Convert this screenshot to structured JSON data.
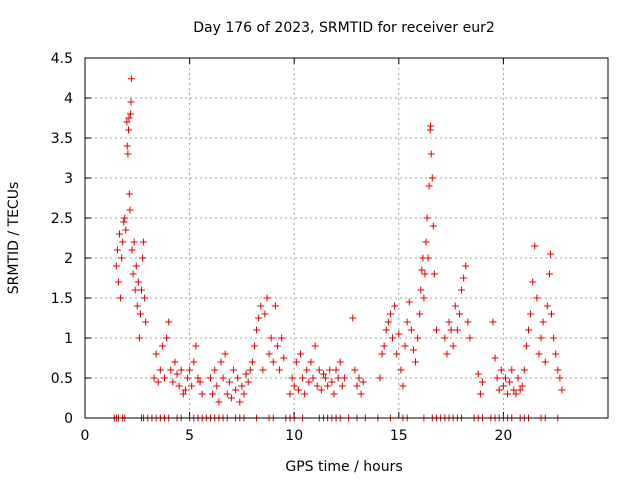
{
  "chart_data": {
    "type": "scatter",
    "title": "Day 176 of 2023, SRMTID for receiver eur2",
    "xlabel": "GPS time / hours",
    "ylabel": "SRMTID / TECUs",
    "xlim": [
      0,
      25
    ],
    "ylim": [
      0,
      4.5
    ],
    "xticks": [
      0,
      5,
      10,
      15,
      20
    ],
    "yticks": [
      0,
      0.5,
      1,
      1.5,
      2,
      2.5,
      3,
      3.5,
      4,
      4.5
    ],
    "xtick_labels": [
      "0",
      "5",
      "10",
      "15",
      "20"
    ],
    "ytick_labels": [
      "0",
      "0.5",
      "1",
      "1.5",
      "2",
      "2.5",
      "3",
      "3.5",
      "4",
      "4.5"
    ],
    "grid": true,
    "marker": "plus",
    "color": "#e00000",
    "series": [
      {
        "name": "eur2",
        "points": [
          [
            1.5,
            1.9
          ],
          [
            1.55,
            2.1
          ],
          [
            1.6,
            1.7
          ],
          [
            1.65,
            2.3
          ],
          [
            1.7,
            1.5
          ],
          [
            1.75,
            2.0
          ],
          [
            1.8,
            2.2
          ],
          [
            1.85,
            2.45
          ],
          [
            1.9,
            2.5
          ],
          [
            1.95,
            2.35
          ],
          [
            2.0,
            3.7
          ],
          [
            2.02,
            3.4
          ],
          [
            2.05,
            3.3
          ],
          [
            2.08,
            3.6
          ],
          [
            2.1,
            3.75
          ],
          [
            2.12,
            2.8
          ],
          [
            2.15,
            2.6
          ],
          [
            2.18,
            3.8
          ],
          [
            2.2,
            3.95
          ],
          [
            2.22,
            4.24
          ],
          [
            2.25,
            2.1
          ],
          [
            2.3,
            1.8
          ],
          [
            2.35,
            2.2
          ],
          [
            2.4,
            1.6
          ],
          [
            2.45,
            1.9
          ],
          [
            2.5,
            1.4
          ],
          [
            2.55,
            1.7
          ],
          [
            2.6,
            1.0
          ],
          [
            2.65,
            1.3
          ],
          [
            2.7,
            1.6
          ],
          [
            2.75,
            2.0
          ],
          [
            2.8,
            2.2
          ],
          [
            2.85,
            1.5
          ],
          [
            2.9,
            1.2
          ],
          [
            3.3,
            0.5
          ],
          [
            3.4,
            0.8
          ],
          [
            3.5,
            0.45
          ],
          [
            3.6,
            0.6
          ],
          [
            3.7,
            0.9
          ],
          [
            3.8,
            0.5
          ],
          [
            3.9,
            1.0
          ],
          [
            4.0,
            1.2
          ],
          [
            4.1,
            0.6
          ],
          [
            4.2,
            0.45
          ],
          [
            4.3,
            0.7
          ],
          [
            4.4,
            0.55
          ],
          [
            4.5,
            0.4
          ],
          [
            4.6,
            0.6
          ],
          [
            4.7,
            0.3
          ],
          [
            4.8,
            0.35
          ],
          [
            4.9,
            0.5
          ],
          [
            5.0,
            0.6
          ],
          [
            5.1,
            0.4
          ],
          [
            5.2,
            0.7
          ],
          [
            5.3,
            0.9
          ],
          [
            5.4,
            0.5
          ],
          [
            5.5,
            0.45
          ],
          [
            5.6,
            0.3
          ],
          [
            6.0,
            0.5
          ],
          [
            6.1,
            0.3
          ],
          [
            6.2,
            0.6
          ],
          [
            6.3,
            0.4
          ],
          [
            6.4,
            0.2
          ],
          [
            6.5,
            0.7
          ],
          [
            6.6,
            0.5
          ],
          [
            6.7,
            0.8
          ],
          [
            6.8,
            0.3
          ],
          [
            6.9,
            0.45
          ],
          [
            7.0,
            0.25
          ],
          [
            7.1,
            0.6
          ],
          [
            7.2,
            0.35
          ],
          [
            7.3,
            0.5
          ],
          [
            7.4,
            0.2
          ],
          [
            7.5,
            0.4
          ],
          [
            7.6,
            0.3
          ],
          [
            7.7,
            0.55
          ],
          [
            7.8,
            0.45
          ],
          [
            7.9,
            0.6
          ],
          [
            8.0,
            0.7
          ],
          [
            8.1,
            0.9
          ],
          [
            8.2,
            1.1
          ],
          [
            8.3,
            1.25
          ],
          [
            8.4,
            1.4
          ],
          [
            8.5,
            0.6
          ],
          [
            8.6,
            1.3
          ],
          [
            8.7,
            1.5
          ],
          [
            8.8,
            0.8
          ],
          [
            8.9,
            1.0
          ],
          [
            9.0,
            0.7
          ],
          [
            9.1,
            1.4
          ],
          [
            9.2,
            0.9
          ],
          [
            9.3,
            0.6
          ],
          [
            9.4,
            1.0
          ],
          [
            9.5,
            0.75
          ],
          [
            9.8,
            0.3
          ],
          [
            9.9,
            0.5
          ],
          [
            10.0,
            0.4
          ],
          [
            10.1,
            0.7
          ],
          [
            10.2,
            0.35
          ],
          [
            10.3,
            0.8
          ],
          [
            10.4,
            0.5
          ],
          [
            10.5,
            0.3
          ],
          [
            10.6,
            0.6
          ],
          [
            10.7,
            0.45
          ],
          [
            10.8,
            0.7
          ],
          [
            10.9,
            0.5
          ],
          [
            11.0,
            0.9
          ],
          [
            11.1,
            0.4
          ],
          [
            11.2,
            0.6
          ],
          [
            11.3,
            0.35
          ],
          [
            11.4,
            0.55
          ],
          [
            11.5,
            0.5
          ],
          [
            11.6,
            0.4
          ],
          [
            11.7,
            0.6
          ],
          [
            11.8,
            0.45
          ],
          [
            11.9,
            0.3
          ],
          [
            12.0,
            0.6
          ],
          [
            12.1,
            0.5
          ],
          [
            12.2,
            0.7
          ],
          [
            12.3,
            0.4
          ],
          [
            12.4,
            0.5
          ],
          [
            12.8,
            1.25
          ],
          [
            12.9,
            0.6
          ],
          [
            13.0,
            0.4
          ],
          [
            13.1,
            0.5
          ],
          [
            13.2,
            0.3
          ],
          [
            13.3,
            0.45
          ],
          [
            14.1,
            0.5
          ],
          [
            14.2,
            0.8
          ],
          [
            14.3,
            0.9
          ],
          [
            14.4,
            1.1
          ],
          [
            14.5,
            1.2
          ],
          [
            14.6,
            1.3
          ],
          [
            14.7,
            1.0
          ],
          [
            14.8,
            1.4
          ],
          [
            14.9,
            0.8
          ],
          [
            15.0,
            1.05
          ],
          [
            15.1,
            0.6
          ],
          [
            15.2,
            0.4
          ],
          [
            15.3,
            0.9
          ],
          [
            15.4,
            1.2
          ],
          [
            15.5,
            1.45
          ],
          [
            15.6,
            1.1
          ],
          [
            15.7,
            0.85
          ],
          [
            15.8,
            0.7
          ],
          [
            15.9,
            1.0
          ],
          [
            16.0,
            1.3
          ],
          [
            16.05,
            1.6
          ],
          [
            16.1,
            1.85
          ],
          [
            16.15,
            2.0
          ],
          [
            16.2,
            1.5
          ],
          [
            16.25,
            1.8
          ],
          [
            16.3,
            2.2
          ],
          [
            16.35,
            2.5
          ],
          [
            16.4,
            2.0
          ],
          [
            16.45,
            2.9
          ],
          [
            16.5,
            3.6
          ],
          [
            16.52,
            3.65
          ],
          [
            16.55,
            3.3
          ],
          [
            16.6,
            3.0
          ],
          [
            16.65,
            2.4
          ],
          [
            16.7,
            1.8
          ],
          [
            16.8,
            1.1
          ],
          [
            17.2,
            1.0
          ],
          [
            17.3,
            0.8
          ],
          [
            17.4,
            1.2
          ],
          [
            17.5,
            1.1
          ],
          [
            17.6,
            0.9
          ],
          [
            17.7,
            1.4
          ],
          [
            17.8,
            1.1
          ],
          [
            17.9,
            1.3
          ],
          [
            18.0,
            1.6
          ],
          [
            18.1,
            1.75
          ],
          [
            18.2,
            1.9
          ],
          [
            18.3,
            1.2
          ],
          [
            18.4,
            1.0
          ],
          [
            18.8,
            0.55
          ],
          [
            18.9,
            0.3
          ],
          [
            19.0,
            0.45
          ],
          [
            19.5,
            1.2
          ],
          [
            19.6,
            0.75
          ],
          [
            19.7,
            0.5
          ],
          [
            19.8,
            0.35
          ],
          [
            19.9,
            0.6
          ],
          [
            20.0,
            0.4
          ],
          [
            20.1,
            0.5
          ],
          [
            20.2,
            0.3
          ],
          [
            20.3,
            0.45
          ],
          [
            20.4,
            0.6
          ],
          [
            20.5,
            0.35
          ],
          [
            20.6,
            0.3
          ],
          [
            20.7,
            0.5
          ],
          [
            20.8,
            0.35
          ],
          [
            20.9,
            0.4
          ],
          [
            21.0,
            0.6
          ],
          [
            21.1,
            0.9
          ],
          [
            21.2,
            1.1
          ],
          [
            21.3,
            1.3
          ],
          [
            21.4,
            1.7
          ],
          [
            21.5,
            2.15
          ],
          [
            21.6,
            1.5
          ],
          [
            21.7,
            0.8
          ],
          [
            21.8,
            1.0
          ],
          [
            21.9,
            1.2
          ],
          [
            22.0,
            0.7
          ],
          [
            22.1,
            1.4
          ],
          [
            22.2,
            1.8
          ],
          [
            22.25,
            2.05
          ],
          [
            22.3,
            1.3
          ],
          [
            22.4,
            1.0
          ],
          [
            22.5,
            0.8
          ],
          [
            22.6,
            0.6
          ],
          [
            22.7,
            0.5
          ],
          [
            22.8,
            0.35
          ]
        ],
        "zero_points_x": [
          1.4,
          1.5,
          1.6,
          1.8,
          1.9,
          2.7,
          2.8,
          3.0,
          3.2,
          3.4,
          3.6,
          3.8,
          4.0,
          4.4,
          4.6,
          5.0,
          5.2,
          5.4,
          5.6,
          5.8,
          6.0,
          6.2,
          6.4,
          6.6,
          6.8,
          7.2,
          7.4,
          7.6,
          8.2,
          8.8,
          9.0,
          9.6,
          9.8,
          10.0,
          10.4,
          11.2,
          11.4,
          11.6,
          11.8,
          12.0,
          12.2,
          12.6,
          13.0,
          13.4,
          14.0,
          14.6,
          15.2,
          15.4,
          16.2,
          16.6,
          16.8,
          17.0,
          17.2,
          17.4,
          17.6,
          17.8,
          18.0,
          18.6,
          18.8,
          19.0,
          19.4,
          19.6,
          19.8,
          20.0,
          20.2,
          20.4,
          20.8,
          21.0,
          21.2,
          21.8,
          22.0,
          22.6
        ]
      }
    ]
  }
}
